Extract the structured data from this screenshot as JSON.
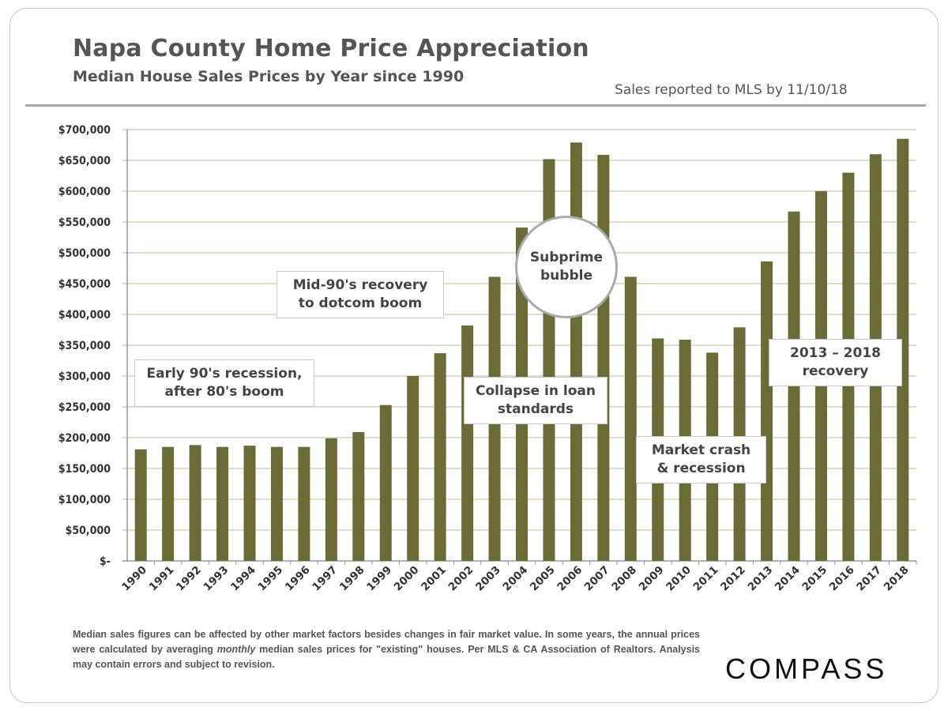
{
  "header": {
    "title": "Napa County Home Price Appreciation",
    "subtitle": "Median House Sales Prices by Year since 1990",
    "note": "Sales reported to MLS by 11/10/18"
  },
  "chart_data": {
    "type": "bar",
    "title": "Napa County Home Price Appreciation",
    "subtitle": "Median House Sales Prices by Year since 1990",
    "categories": [
      "1990",
      "1991",
      "1992",
      "1993",
      "1994",
      "1995",
      "1996",
      "1997",
      "1998",
      "1999",
      "2000",
      "2001",
      "2002",
      "2003",
      "2004",
      "2005",
      "2006",
      "2007",
      "2008",
      "2009",
      "2010",
      "2011",
      "2012",
      "2013",
      "2014",
      "2015",
      "2016",
      "2017",
      "2018"
    ],
    "values": [
      181000,
      185000,
      188000,
      185000,
      187000,
      185000,
      185000,
      199000,
      209000,
      253000,
      300000,
      337000,
      382000,
      461000,
      541000,
      652000,
      679000,
      659000,
      461000,
      361000,
      359000,
      338000,
      379000,
      486000,
      567000,
      600000,
      630000,
      660000,
      685000
    ],
    "ylim": [
      0,
      700000
    ],
    "yticks": [
      0,
      50000,
      100000,
      150000,
      200000,
      250000,
      300000,
      350000,
      400000,
      450000,
      500000,
      550000,
      600000,
      650000,
      700000
    ],
    "ytick_labels": [
      "$-",
      "$50,000",
      "$100,000",
      "$150,000",
      "$200,000",
      "$250,000",
      "$300,000",
      "$350,000",
      "$400,000",
      "$450,000",
      "$500,000",
      "$550,000",
      "$600,000",
      "$650,000",
      "$700,000"
    ],
    "grid": true,
    "bar_color": "#6b6b35",
    "annotations": {
      "early90s": "Early 90's recession, after 80's boom",
      "mid90s": "Mid-90's recovery to dotcom boom",
      "collapse": "Collapse in loan standards",
      "subprime": "Subprime bubble",
      "crash": "Market crash & recession",
      "recovery": "2013 – 2018 recovery"
    }
  },
  "footer": {
    "text_before": "Median sales figures can be affected by other market factors besides changes in fair market value. In some years, the annual prices were calculated by averaging ",
    "text_italic": "monthly",
    "text_after": " median sales prices for \"existing\" houses. Per MLS & CA Association of Realtors. Analysis may contain errors and subject to revision.",
    "logo": "COMPASS"
  }
}
